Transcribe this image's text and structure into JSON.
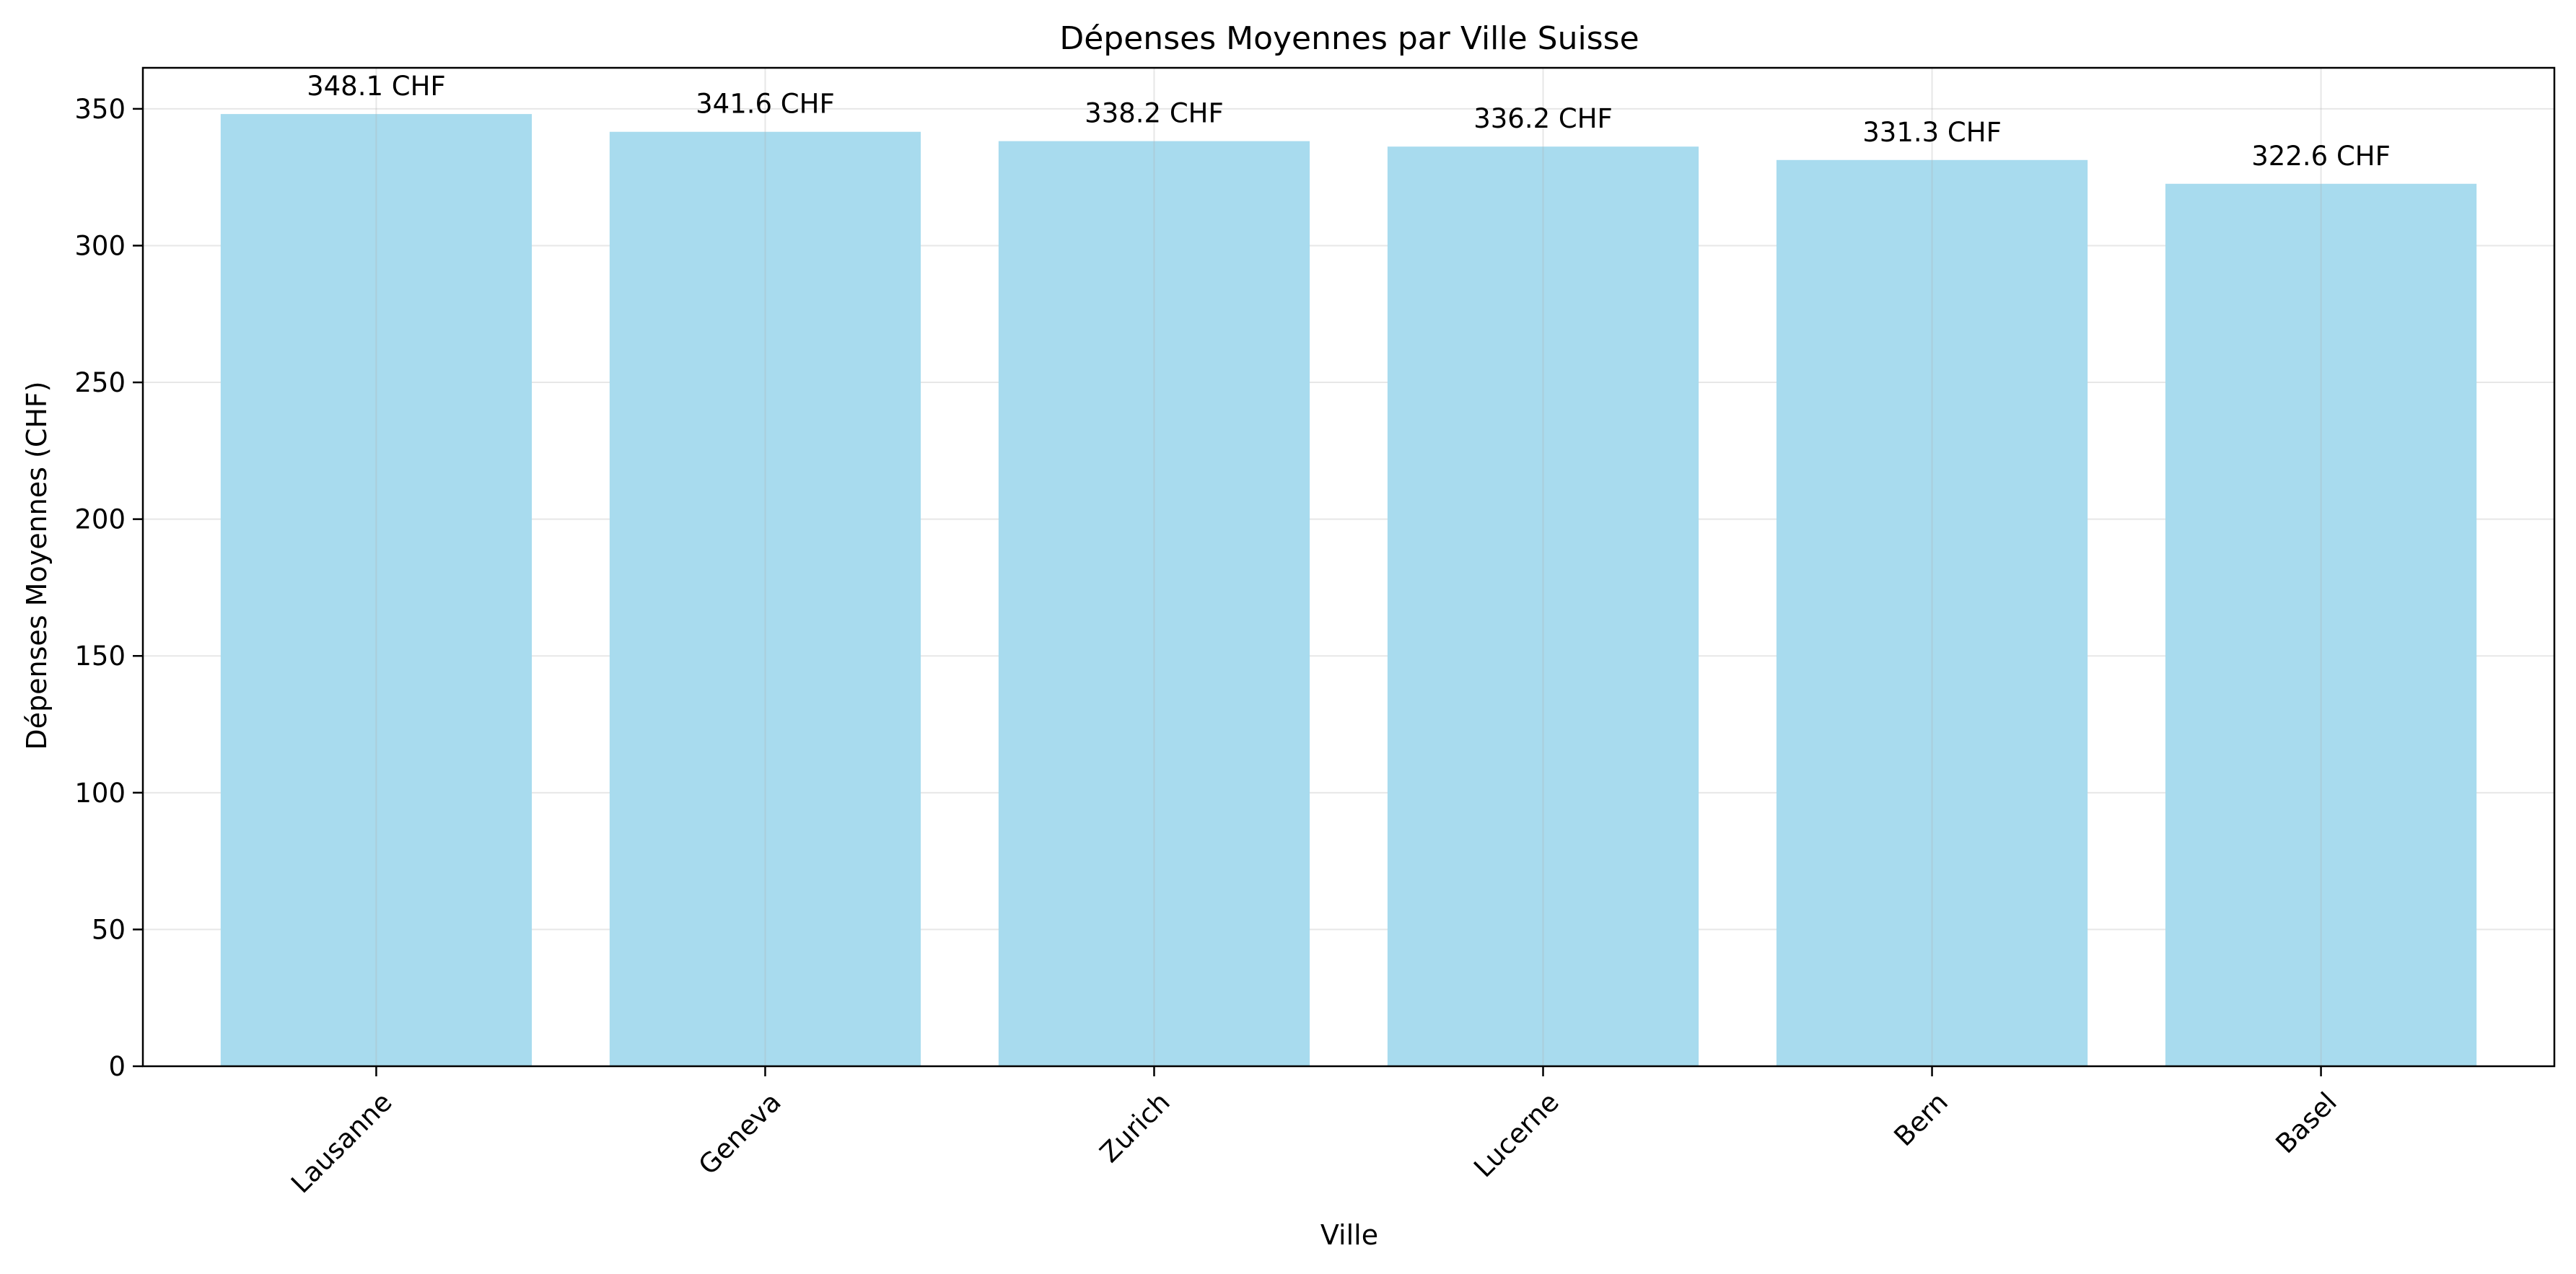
{
  "chart_data": {
    "type": "bar",
    "title": "Dépenses Moyennes par Ville Suisse",
    "xlabel": "Ville",
    "ylabel": "Dépenses Moyennes (CHF)",
    "categories": [
      "Lausanne",
      "Geneva",
      "Zurich",
      "Lucerne",
      "Bern",
      "Basel"
    ],
    "values": [
      348.1,
      341.6,
      338.2,
      336.2,
      331.3,
      322.6
    ],
    "value_labels": [
      "348.1 CHF",
      "341.6 CHF",
      "338.2 CHF",
      "336.2 CHF",
      "331.3 CHF",
      "322.6 CHF"
    ],
    "ylim": [
      0,
      365
    ],
    "yticks": [
      0,
      50,
      100,
      150,
      200,
      250,
      300,
      350
    ],
    "ytick_labels": [
      "0",
      "50",
      "100",
      "150",
      "200",
      "250",
      "300",
      "350"
    ],
    "grid": true,
    "bar_color": "#a8dbee",
    "xtick_rotation": "45 degrees"
  }
}
